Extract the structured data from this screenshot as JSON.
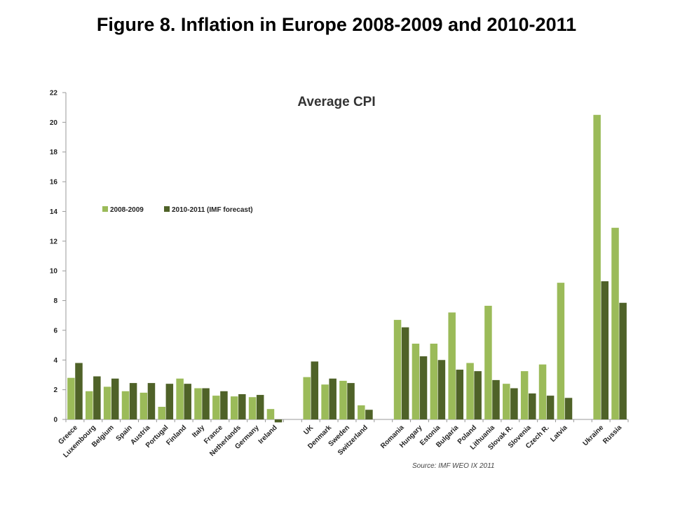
{
  "page": {
    "title": "Figure 8. Inflation in Europe 2008-2009 and 2010-2011"
  },
  "chart_data": {
    "type": "bar",
    "title": "Average CPI",
    "source": "Source: IMF WEO IX 2011",
    "ylim": [
      0,
      22
    ],
    "yticks": [
      0,
      2,
      4,
      6,
      8,
      10,
      12,
      14,
      16,
      18,
      20,
      22
    ],
    "grid": false,
    "legend_position": "upper-left",
    "colors": {
      "2008-2009": "#9bbb59",
      "2010-2011 (IMF forecast)": "#4f6228"
    },
    "groups": [
      [
        "Greece",
        "Luxembourg",
        "Belgium",
        "Spain",
        "Austria",
        "Portugal",
        "Finland",
        "Italy",
        "France",
        "Netherlands",
        "Germany",
        "Ireland"
      ],
      [
        "UK",
        "Denmark",
        "Sweden",
        "Switzerland"
      ],
      [
        "Romania",
        "Hungary",
        "Estonia",
        "Bulgaria",
        "Poland",
        "Lithuania",
        "Slovak R.",
        "Slovenia",
        "Czech R.",
        "Latvia"
      ],
      [
        "Ukraine",
        "Russia"
      ]
    ],
    "categories": [
      "Greece",
      "Luxembourg",
      "Belgium",
      "Spain",
      "Austria",
      "Portugal",
      "Finland",
      "Italy",
      "France",
      "Netherlands",
      "Germany",
      "Ireland",
      "UK",
      "Denmark",
      "Sweden",
      "Switzerland",
      "Romania",
      "Hungary",
      "Estonia",
      "Bulgaria",
      "Poland",
      "Lithuania",
      "Slovak R.",
      "Slovenia",
      "Czech R.",
      "Latvia",
      "Ukraine",
      "Russia"
    ],
    "series": [
      {
        "name": "2008-2009",
        "values": [
          2.8,
          1.9,
          2.2,
          1.9,
          1.8,
          0.85,
          2.75,
          2.1,
          1.6,
          1.55,
          1.5,
          0.7,
          2.85,
          2.35,
          2.6,
          0.95,
          6.7,
          5.1,
          5.1,
          7.2,
          3.8,
          7.65,
          2.4,
          3.25,
          3.7,
          9.2,
          20.5,
          12.9
        ]
      },
      {
        "name": "2010-2011 (IMF forecast)",
        "values": [
          3.8,
          2.9,
          2.75,
          2.45,
          2.45,
          2.4,
          2.4,
          2.1,
          1.9,
          1.7,
          1.65,
          -0.2,
          3.9,
          2.75,
          2.45,
          0.65,
          6.2,
          4.25,
          4.0,
          3.35,
          3.25,
          2.65,
          2.1,
          1.75,
          1.6,
          1.45,
          9.3,
          7.85
        ]
      }
    ]
  }
}
